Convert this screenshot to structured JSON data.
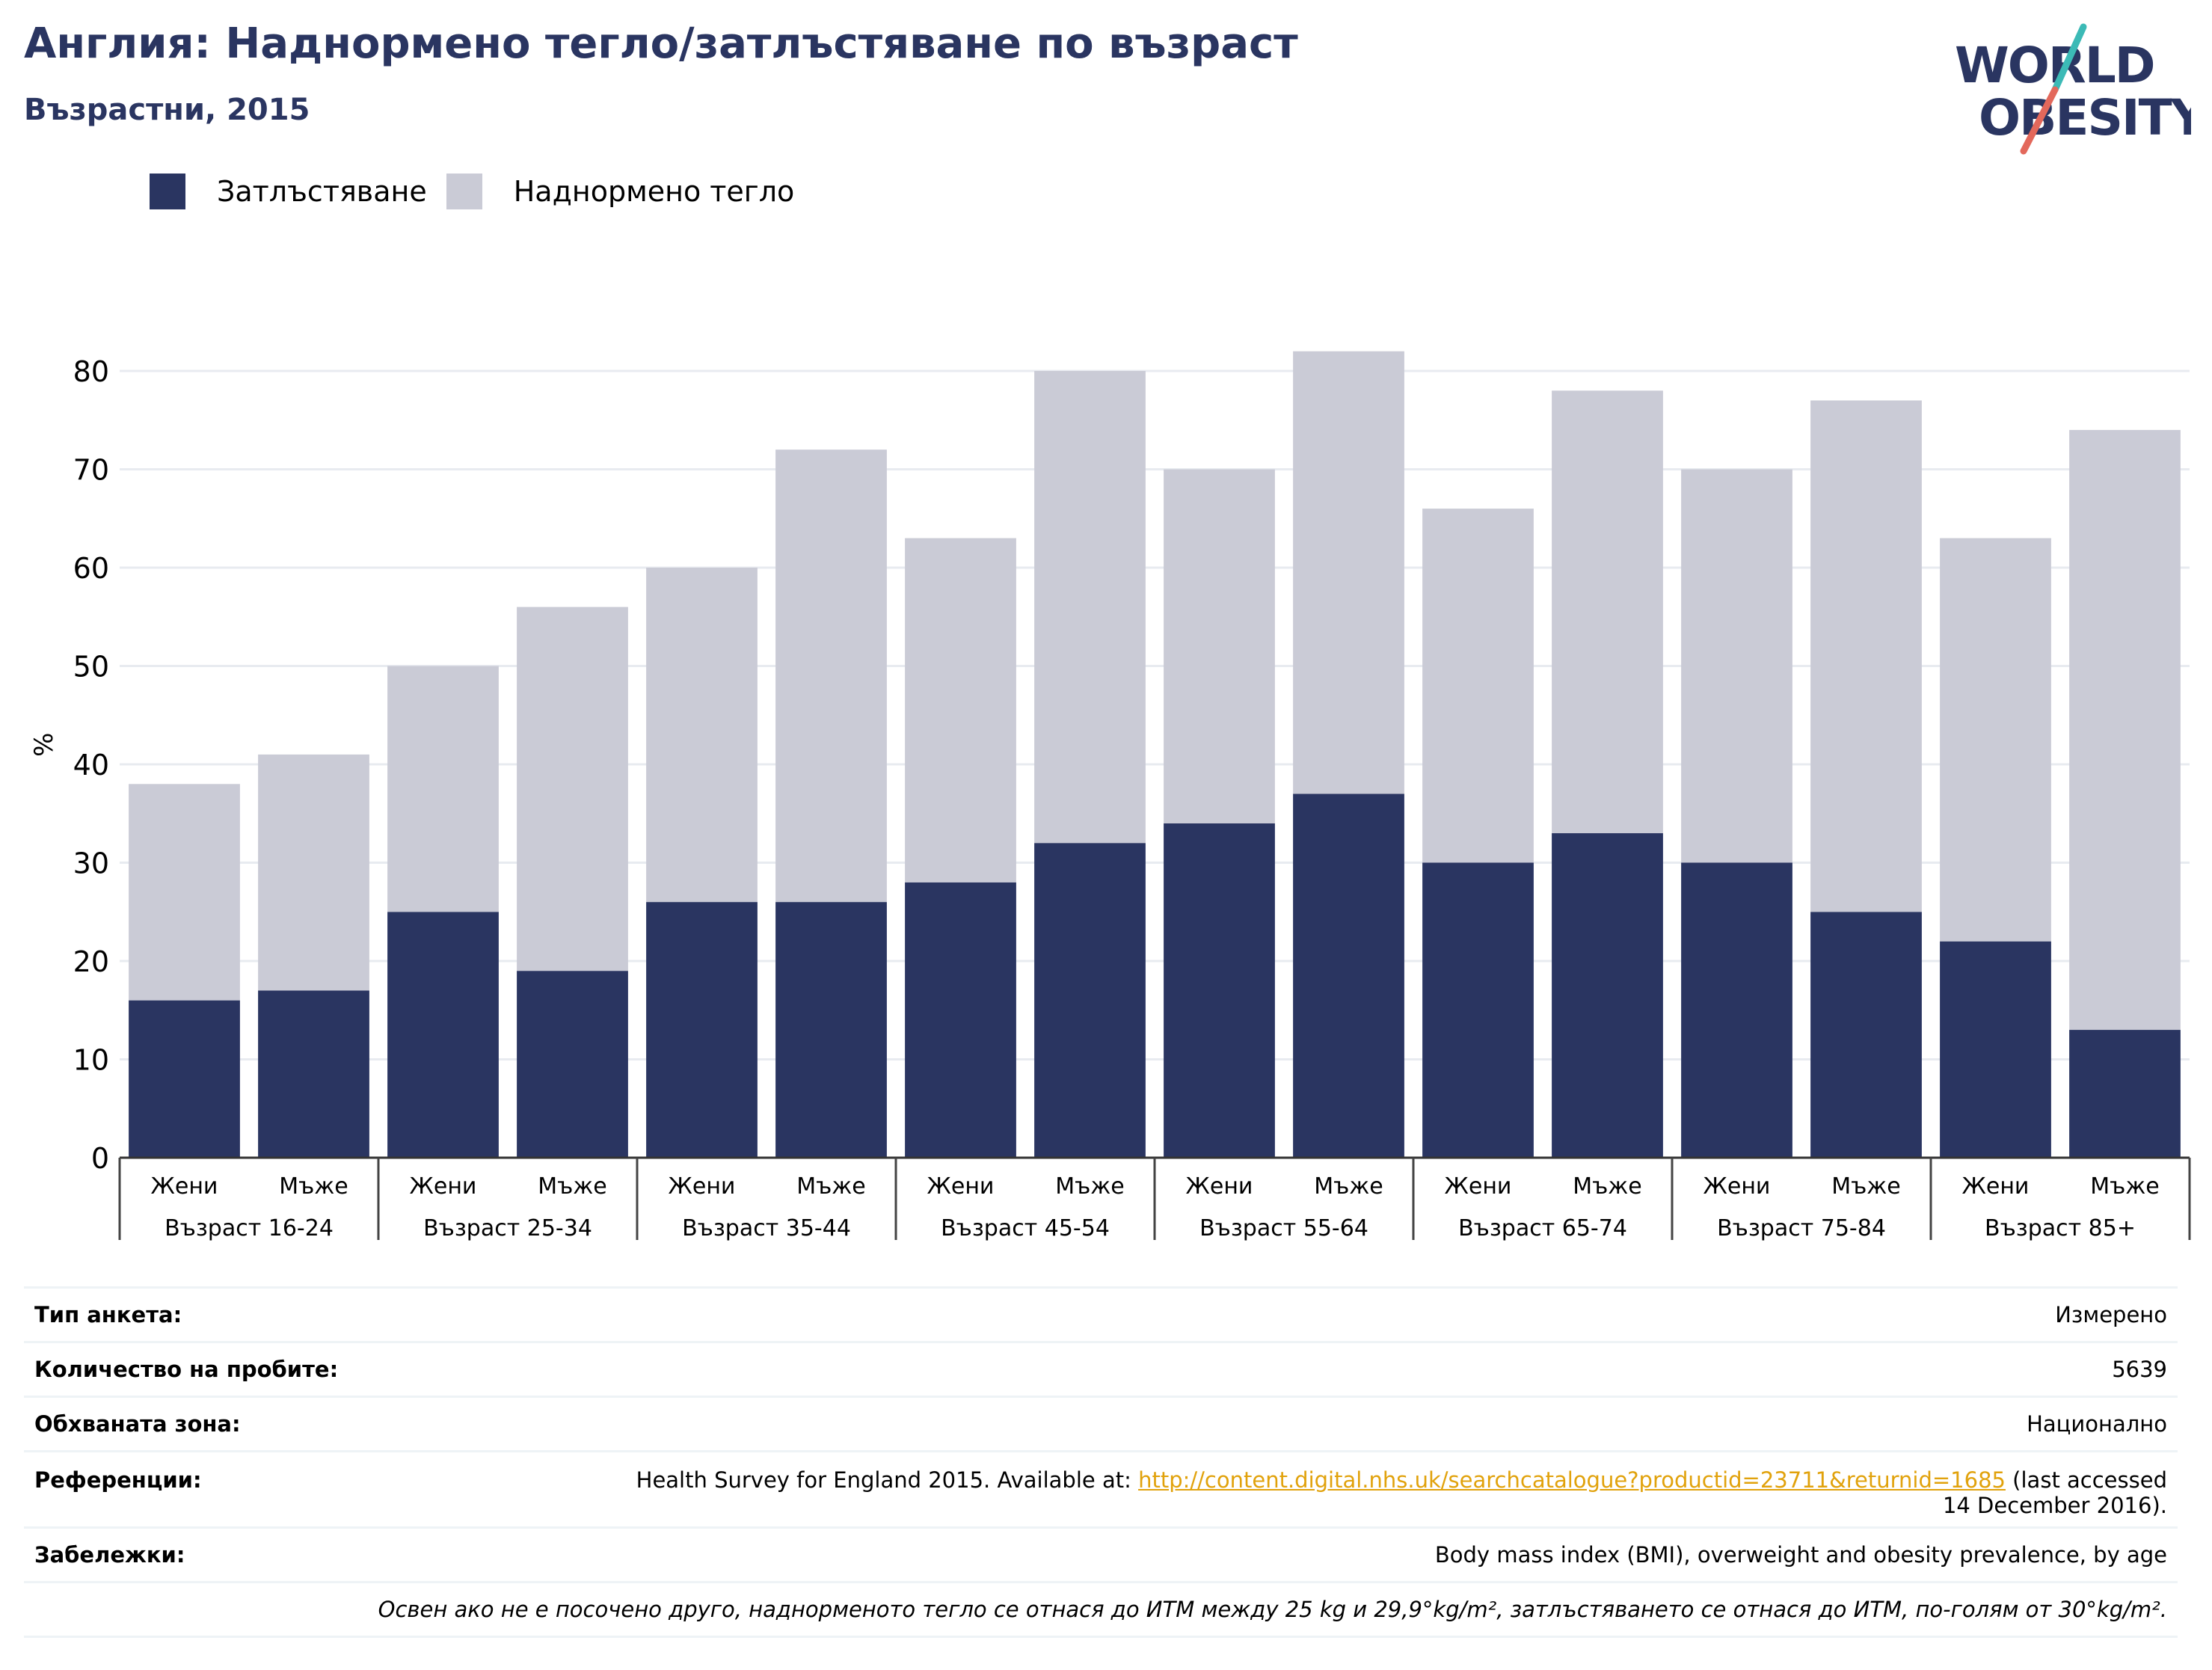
{
  "header": {
    "title": "Англия: Наднормено тегло/затлъстяване по възраст",
    "subtitle": "Възрастни, 2015"
  },
  "logo": {
    "line1": "WORLD",
    "line2": "OBESITY",
    "text_color": "#2a3561",
    "slash_colors": [
      "#3cbab6",
      "#e3685b"
    ]
  },
  "chart_data": {
    "type": "bar",
    "stacked": true,
    "ylabel": "%",
    "ylim": [
      0,
      85
    ],
    "yticks": [
      0,
      10,
      20,
      30,
      40,
      50,
      60,
      70,
      80
    ],
    "grid": true,
    "legend_position": "top-left",
    "groups": [
      "Възраст 16-24",
      "Възраст 25-34",
      "Възраст 35-44",
      "Възраст 45-54",
      "Възраст 55-64",
      "Възраст 65-74",
      "Възраст 75-84",
      "Възраст 85+"
    ],
    "subcategories": [
      "Жени",
      "Мъже"
    ],
    "series": [
      {
        "name": "Затлъстяване",
        "color": "#2a3561",
        "values": [
          16,
          17,
          25,
          19,
          26,
          26,
          28,
          32,
          34,
          37,
          30,
          33,
          30,
          25,
          22,
          13
        ]
      },
      {
        "name": "Наднормено тегло",
        "color": "#cacbd6",
        "values": [
          22,
          24,
          25,
          37,
          34,
          46,
          35,
          48,
          36,
          45,
          36,
          45,
          40,
          52,
          41,
          61
        ]
      }
    ]
  },
  "meta": {
    "survey_type_label": "Тип анкета:",
    "survey_type_value": "Измерено",
    "sample_size_label": "Количество на пробите:",
    "sample_size_value": "5639",
    "area_label": "Обхваната зона:",
    "area_value": "Национално",
    "references_label": "Референции:",
    "references_prefix": "Health Survey for England 2015. Available at: ",
    "references_link": "http://content.digital.nhs.uk/searchcatalogue?productid=23711&returnid=1685",
    "references_suffix": " (last accessed",
    "references_suffix2": "14 December 2016).",
    "notes_label": "Забележки:",
    "notes_value": "Body mass index (BMI), overweight and obesity prevalence, by age",
    "footnote": "Освен ако не е посочено друго, наднорменото тегло се отнася до ИТМ между 25 kg и 29,9°kg/m², затлъстяването се отнася до ИТМ, по-голям от 30°kg/m²."
  }
}
